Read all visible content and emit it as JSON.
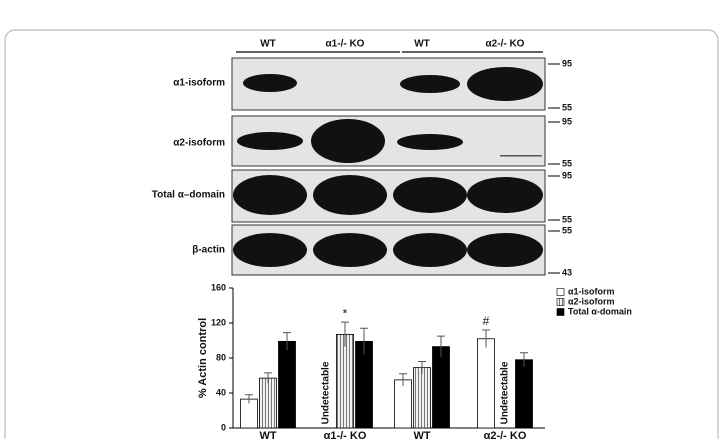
{
  "blot": {
    "lanes": [
      "WT",
      "α1-/- KO",
      "WT",
      "α2-/- KO"
    ],
    "rows": [
      {
        "label": "α1-isoform",
        "markers": [
          "95",
          "55"
        ]
      },
      {
        "label": "α2-isoform",
        "markers": [
          "95",
          "55"
        ]
      },
      {
        "label": "Total α–domain",
        "markers": [
          "95",
          "55"
        ]
      },
      {
        "label": "β-actin",
        "markers": [
          "55",
          "43"
        ]
      }
    ]
  },
  "chart_data": {
    "type": "bar",
    "ylabel": "% Actin control",
    "categories": [
      "WT",
      "α1-/- KO",
      "WT",
      "α2-/- KO"
    ],
    "series": [
      {
        "name": "α1-isoform",
        "color": "#ffffff",
        "values": [
          33,
          null,
          55,
          102
        ],
        "errors": [
          5,
          null,
          7,
          10
        ]
      },
      {
        "name": "α2-isoform",
        "color": "#999999",
        "values": [
          57,
          107,
          69,
          null
        ],
        "errors": [
          6,
          14,
          7,
          null
        ]
      },
      {
        "name": "Total α-domain",
        "color": "#000000",
        "values": [
          99,
          99,
          93,
          78
        ],
        "errors": [
          10,
          15,
          12,
          8
        ]
      }
    ],
    "missing_label": "Undetectable",
    "annotations": [
      {
        "text": "*",
        "category": 1,
        "series": 1
      },
      {
        "text": "#",
        "category": 3,
        "series": 0
      }
    ],
    "ylim": [
      0,
      160
    ],
    "yticks": [
      0,
      40,
      80,
      120,
      160
    ]
  }
}
